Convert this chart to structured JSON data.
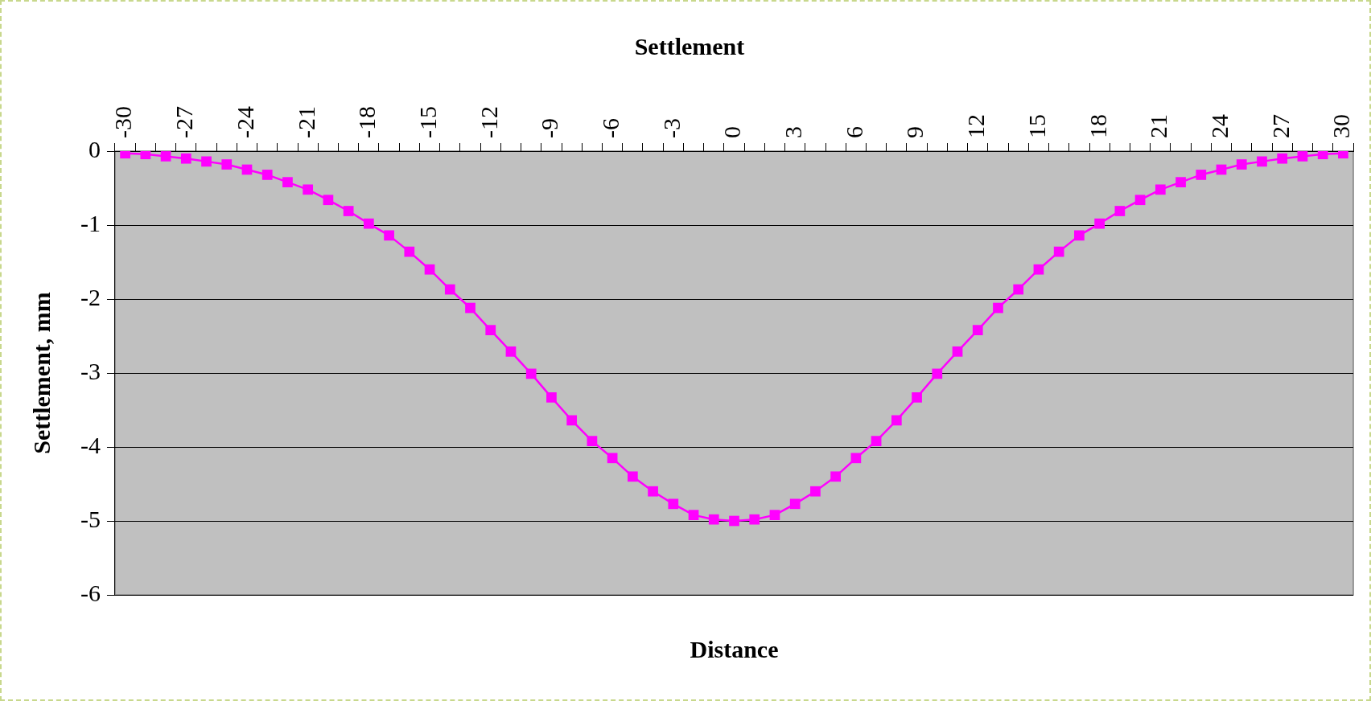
{
  "chart_data": {
    "type": "line",
    "title": "Settlement",
    "xlabel": "Distance",
    "ylabel": "Settlement, mm",
    "categories": [
      "-30",
      null,
      null,
      "-27",
      null,
      null,
      "-24",
      null,
      null,
      "-21",
      null,
      null,
      "-18",
      null,
      null,
      "-15",
      null,
      null,
      "-12",
      null,
      null,
      "-9",
      null,
      null,
      "-6",
      null,
      null,
      "-3",
      null,
      null,
      "0",
      null,
      null,
      "3",
      null,
      null,
      "6",
      null,
      null,
      "9",
      null,
      null,
      "12",
      null,
      null,
      "15",
      null,
      null,
      "18",
      null,
      null,
      "21",
      null,
      null,
      "24",
      null,
      null,
      "27",
      null,
      null,
      "30"
    ],
    "series": [
      {
        "color": "#ff00ff",
        "values": [
          -0.03,
          -0.04,
          -0.07,
          -0.1,
          -0.14,
          -0.18,
          -0.25,
          -0.32,
          -0.42,
          -0.52,
          -0.66,
          -0.81,
          -0.98,
          -1.14,
          -1.36,
          -1.6,
          -1.87,
          -2.12,
          -2.42,
          -2.71,
          -3.01,
          -3.33,
          -3.64,
          -3.92,
          -4.15,
          -4.4,
          -4.6,
          -4.77,
          -4.92,
          -4.98,
          -5.0,
          -4.98,
          -4.92,
          -4.77,
          -4.6,
          -4.4,
          -4.15,
          -3.92,
          -3.64,
          -3.33,
          -3.01,
          -2.71,
          -2.42,
          -2.12,
          -1.87,
          -1.6,
          -1.36,
          -1.14,
          -0.98,
          -0.81,
          -0.66,
          -0.52,
          -0.42,
          -0.32,
          -0.25,
          -0.18,
          -0.14,
          -0.1,
          -0.07,
          -0.04,
          -0.03
        ]
      }
    ],
    "ylim": [
      -6,
      0
    ],
    "yticks": [
      0,
      -1,
      -2,
      -3,
      -4,
      -5,
      -6
    ],
    "grid": "y",
    "marker": "square",
    "line_style": "solid",
    "legend": false
  }
}
